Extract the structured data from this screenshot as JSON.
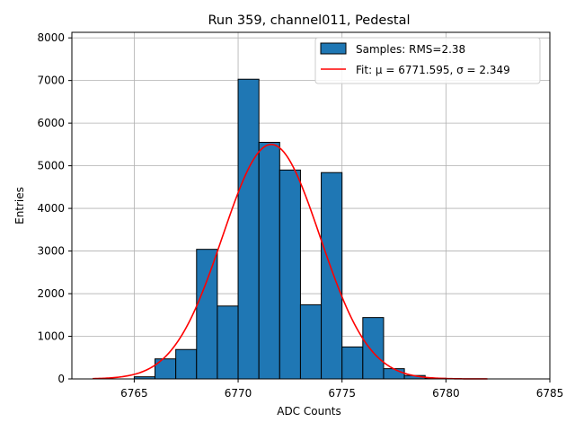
{
  "chart_data": {
    "type": "bar",
    "title": "Run 359, channel011, Pedestal",
    "xlabel": "ADC Counts",
    "ylabel": "Entries",
    "xlim": [
      6762,
      6785
    ],
    "ylim": [
      0,
      8130
    ],
    "xticks": [
      6765,
      6770,
      6775,
      6780,
      6785
    ],
    "yticks": [
      0,
      1000,
      2000,
      3000,
      4000,
      5000,
      6000,
      7000,
      8000
    ],
    "grid": true,
    "legend_position": "top-right",
    "histogram": {
      "name": "Samples: RMS=2.38",
      "color": "#1f77b4",
      "bin_width": 1,
      "bins": [
        {
          "x": 6765,
          "value": 50
        },
        {
          "x": 6766,
          "value": 470
        },
        {
          "x": 6767,
          "value": 690
        },
        {
          "x": 6768,
          "value": 3040
        },
        {
          "x": 6769,
          "value": 1710
        },
        {
          "x": 6770,
          "value": 7030
        },
        {
          "x": 6771,
          "value": 5550
        },
        {
          "x": 6772,
          "value": 4900
        },
        {
          "x": 6773,
          "value": 1740
        },
        {
          "x": 6774,
          "value": 4840
        },
        {
          "x": 6775,
          "value": 750
        },
        {
          "x": 6776,
          "value": 1440
        },
        {
          "x": 6777,
          "value": 240
        },
        {
          "x": 6778,
          "value": 80
        },
        {
          "x": 6779,
          "value": 15
        }
      ]
    },
    "fit": {
      "name": "Fit: μ = 6771.595, σ = 2.349",
      "color": "#ff0000",
      "mu": 6771.595,
      "sigma": 2.349,
      "amplitude": 5500,
      "x_range": [
        6763,
        6782
      ]
    }
  }
}
